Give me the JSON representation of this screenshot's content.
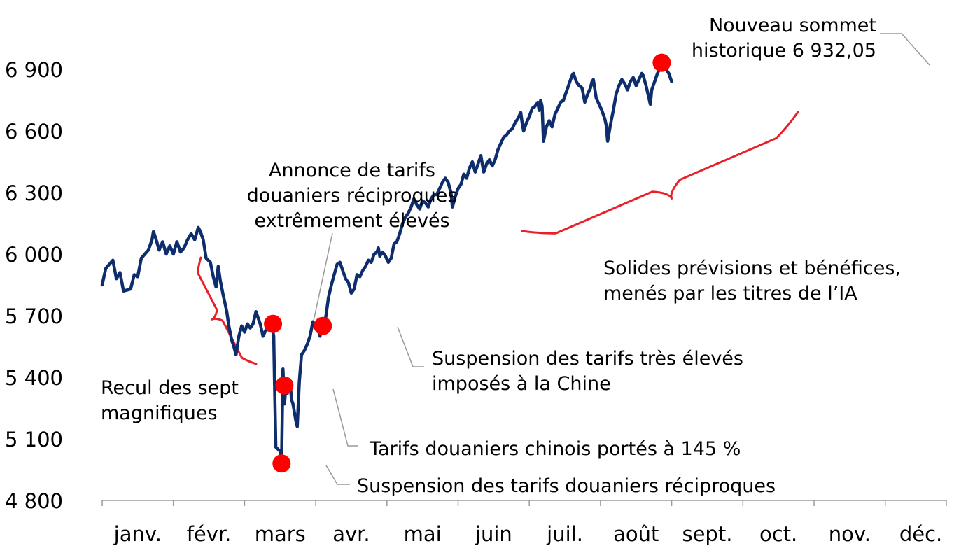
{
  "chart_data": {
    "type": "line",
    "title": "",
    "xlabel": "",
    "ylabel": "",
    "ylim": [
      4800,
      7000
    ],
    "yticks": [
      {
        "value": 4800,
        "label": "4 800"
      },
      {
        "value": 5100,
        "label": "5 100"
      },
      {
        "value": 5400,
        "label": "5 400"
      },
      {
        "value": 5700,
        "label": "5 700"
      },
      {
        "value": 6000,
        "label": "6 000"
      },
      {
        "value": 6300,
        "label": "6 300"
      },
      {
        "value": 6600,
        "label": "6 600"
      },
      {
        "value": 6900,
        "label": "6 900"
      }
    ],
    "months": [
      "janv.",
      "févr.",
      "mars",
      "avr.",
      "mai",
      "juin",
      "juil.",
      "août",
      "sept.",
      "oct.",
      "nov.",
      "déc."
    ],
    "line_color": "#0d2d6c",
    "marker_color": "#ff0000",
    "bracket_color": "#e8202a",
    "grid": false,
    "legend": "none",
    "series": [
      {
        "points": [
          [
            0.0,
            5850
          ],
          [
            0.05,
            5930
          ],
          [
            0.1,
            5950
          ],
          [
            0.15,
            5970
          ],
          [
            0.2,
            5880
          ],
          [
            0.25,
            5910
          ],
          [
            0.3,
            5820
          ],
          [
            0.4,
            5830
          ],
          [
            0.45,
            5900
          ],
          [
            0.5,
            5890
          ],
          [
            0.55,
            5980
          ],
          [
            0.6,
            6000
          ],
          [
            0.65,
            6020
          ],
          [
            0.7,
            6070
          ],
          [
            0.72,
            6110
          ],
          [
            0.75,
            6080
          ],
          [
            0.8,
            6020
          ],
          [
            0.85,
            6060
          ],
          [
            0.9,
            6000
          ],
          [
            0.95,
            6040
          ],
          [
            1.0,
            6000
          ],
          [
            1.05,
            6060
          ],
          [
            1.1,
            6010
          ],
          [
            1.15,
            6030
          ],
          [
            1.2,
            6070
          ],
          [
            1.25,
            6100
          ],
          [
            1.3,
            6070
          ],
          [
            1.35,
            6130
          ],
          [
            1.38,
            6110
          ],
          [
            1.42,
            6070
          ],
          [
            1.46,
            5980
          ],
          [
            1.52,
            5960
          ],
          [
            1.56,
            5890
          ],
          [
            1.6,
            5840
          ],
          [
            1.63,
            5940
          ],
          [
            1.66,
            5870
          ],
          [
            1.7,
            5800
          ],
          [
            1.72,
            5770
          ],
          [
            1.75,
            5720
          ],
          [
            1.78,
            5650
          ],
          [
            1.82,
            5580
          ],
          [
            1.85,
            5550
          ],
          [
            1.88,
            5510
          ],
          [
            1.92,
            5600
          ],
          [
            1.96,
            5650
          ],
          [
            2.0,
            5620
          ],
          [
            2.04,
            5660
          ],
          [
            2.08,
            5640
          ],
          [
            2.12,
            5660
          ],
          [
            2.16,
            5720
          ],
          [
            2.18,
            5700
          ],
          [
            2.22,
            5660
          ],
          [
            2.26,
            5600
          ],
          [
            2.3,
            5630
          ],
          [
            2.34,
            5670
          ],
          [
            2.38,
            5660
          ],
          [
            2.41,
            5600
          ],
          [
            2.42,
            5400
          ],
          [
            2.44,
            5060
          ],
          [
            2.47,
            5050
          ],
          [
            2.5,
            5040
          ],
          [
            2.52,
            4980
          ],
          [
            2.54,
            5440
          ],
          [
            2.56,
            5270
          ],
          [
            2.58,
            5350
          ],
          [
            2.6,
            5320
          ],
          [
            2.62,
            5380
          ],
          [
            2.64,
            5380
          ],
          [
            2.66,
            5290
          ],
          [
            2.68,
            5270
          ],
          [
            2.72,
            5190
          ],
          [
            2.74,
            5160
          ],
          [
            2.77,
            5380
          ],
          [
            2.8,
            5510
          ],
          [
            2.84,
            5530
          ],
          [
            2.88,
            5560
          ],
          [
            2.92,
            5600
          ],
          [
            2.96,
            5670
          ],
          [
            3.0,
            5650
          ],
          [
            3.04,
            5630
          ],
          [
            3.06,
            5600
          ],
          [
            3.1,
            5660
          ],
          [
            3.14,
            5690
          ],
          [
            3.18,
            5790
          ],
          [
            3.22,
            5850
          ],
          [
            3.26,
            5900
          ],
          [
            3.3,
            5950
          ],
          [
            3.34,
            5960
          ],
          [
            3.38,
            5920
          ],
          [
            3.42,
            5880
          ],
          [
            3.46,
            5860
          ],
          [
            3.5,
            5810
          ],
          [
            3.54,
            5830
          ],
          [
            3.58,
            5900
          ],
          [
            3.62,
            5890
          ],
          [
            3.66,
            5920
          ],
          [
            3.7,
            5940
          ],
          [
            3.74,
            5970
          ],
          [
            3.78,
            5960
          ],
          [
            3.82,
            6000
          ],
          [
            3.86,
            6010
          ],
          [
            3.88,
            6030
          ],
          [
            3.9,
            5990
          ],
          [
            3.94,
            6010
          ],
          [
            3.98,
            5990
          ],
          [
            4.02,
            5960
          ],
          [
            4.06,
            5980
          ],
          [
            4.1,
            6050
          ],
          [
            4.14,
            6060
          ],
          [
            4.18,
            6100
          ],
          [
            4.22,
            6150
          ],
          [
            4.26,
            6180
          ],
          [
            4.3,
            6200
          ],
          [
            4.34,
            6230
          ],
          [
            4.38,
            6270
          ],
          [
            4.42,
            6240
          ],
          [
            4.46,
            6220
          ],
          [
            4.5,
            6260
          ],
          [
            4.54,
            6250
          ],
          [
            4.58,
            6230
          ],
          [
            4.62,
            6270
          ],
          [
            4.66,
            6290
          ],
          [
            4.7,
            6290
          ],
          [
            4.74,
            6320
          ],
          [
            4.78,
            6350
          ],
          [
            4.82,
            6370
          ],
          [
            4.86,
            6350
          ],
          [
            4.9,
            6300
          ],
          [
            4.92,
            6230
          ],
          [
            4.96,
            6280
          ],
          [
            5.0,
            6320
          ],
          [
            5.04,
            6340
          ],
          [
            5.08,
            6390
          ],
          [
            5.12,
            6370
          ],
          [
            5.16,
            6420
          ],
          [
            5.2,
            6450
          ],
          [
            5.24,
            6400
          ],
          [
            5.28,
            6440
          ],
          [
            5.32,
            6480
          ],
          [
            5.36,
            6400
          ],
          [
            5.4,
            6440
          ],
          [
            5.44,
            6460
          ],
          [
            5.48,
            6430
          ],
          [
            5.52,
            6460
          ],
          [
            5.56,
            6510
          ],
          [
            5.6,
            6540
          ],
          [
            5.64,
            6570
          ],
          [
            5.68,
            6580
          ],
          [
            5.72,
            6600
          ],
          [
            5.76,
            6610
          ],
          [
            5.8,
            6640
          ],
          [
            5.84,
            6660
          ],
          [
            5.88,
            6690
          ],
          [
            5.9,
            6640
          ],
          [
            5.92,
            6600
          ],
          [
            5.96,
            6640
          ],
          [
            6.0,
            6670
          ],
          [
            6.04,
            6710
          ],
          [
            6.08,
            6720
          ],
          [
            6.12,
            6740
          ],
          [
            6.14,
            6700
          ],
          [
            6.16,
            6750
          ],
          [
            6.18,
            6720
          ],
          [
            6.2,
            6550
          ],
          [
            6.24,
            6620
          ],
          [
            6.28,
            6650
          ],
          [
            6.32,
            6620
          ],
          [
            6.36,
            6680
          ],
          [
            6.4,
            6710
          ],
          [
            6.44,
            6740
          ],
          [
            6.48,
            6750
          ],
          [
            6.52,
            6790
          ],
          [
            6.56,
            6830
          ],
          [
            6.6,
            6870
          ],
          [
            6.62,
            6880
          ],
          [
            6.66,
            6840
          ],
          [
            6.7,
            6820
          ],
          [
            6.74,
            6810
          ],
          [
            6.78,
            6740
          ],
          [
            6.82,
            6780
          ],
          [
            6.86,
            6810
          ],
          [
            6.88,
            6840
          ],
          [
            6.9,
            6850
          ],
          [
            6.94,
            6760
          ],
          [
            6.98,
            6730
          ],
          [
            7.02,
            6700
          ],
          [
            7.06,
            6660
          ],
          [
            7.08,
            6630
          ],
          [
            7.1,
            6550
          ],
          [
            7.14,
            6630
          ],
          [
            7.18,
            6700
          ],
          [
            7.22,
            6780
          ],
          [
            7.26,
            6820
          ],
          [
            7.3,
            6850
          ],
          [
            7.34,
            6830
          ],
          [
            7.38,
            6800
          ],
          [
            7.42,
            6840
          ],
          [
            7.46,
            6860
          ],
          [
            7.5,
            6820
          ],
          [
            7.54,
            6850
          ],
          [
            7.58,
            6880
          ],
          [
            7.6,
            6870
          ],
          [
            7.64,
            6820
          ],
          [
            7.68,
            6760
          ],
          [
            7.7,
            6730
          ],
          [
            7.72,
            6800
          ],
          [
            7.76,
            6840
          ],
          [
            7.8,
            6880
          ],
          [
            7.84,
            6910
          ],
          [
            7.88,
            6930
          ],
          [
            7.92,
            6900
          ],
          [
            7.96,
            6880
          ],
          [
            8.0,
            6840
          ]
        ]
      }
    ],
    "events": [
      {
        "x": 2.4,
        "y": 5660
      },
      {
        "x": 2.52,
        "y": 4980
      },
      {
        "x": 2.56,
        "y": 5360
      },
      {
        "x": 3.1,
        "y": 5650
      },
      {
        "x": 7.86,
        "y": 6932
      }
    ],
    "annotations": [
      {
        "lines": [
          "Recul des sept",
          "magnifiques"
        ]
      },
      {
        "lines": [
          "Annonce de tarifs",
          "douaniers réciproques",
          "extrêmement élevés"
        ]
      },
      {
        "lines": [
          "Suspension des tarifs très élevés",
          "imposés à la Chine"
        ]
      },
      {
        "lines": [
          "Tarifs douaniers chinois portés à 145 %"
        ]
      },
      {
        "lines": [
          "Suspension des tarifs douaniers réciproques"
        ]
      },
      {
        "lines": [
          "Solides prévisions et bénéfices,",
          "menés par les titres de l’IA"
        ]
      },
      {
        "lines": [
          "Nouveau sommet",
          "historique 6 932,05"
        ]
      }
    ]
  }
}
